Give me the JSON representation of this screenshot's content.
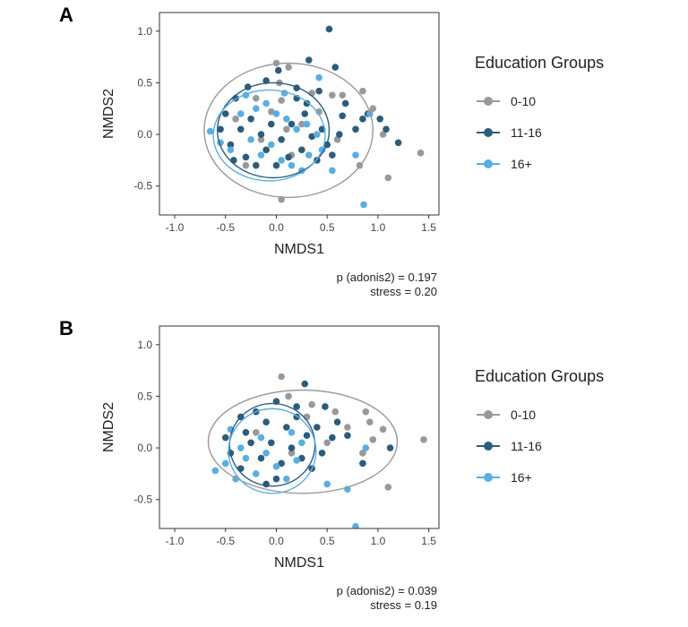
{
  "chart_data": [
    {
      "panel_label": "A",
      "type": "scatter",
      "xlabel": "NMDS1",
      "ylabel": "NMDS2",
      "xlim": [
        -1.15,
        1.6
      ],
      "ylim": [
        -0.78,
        1.18
      ],
      "xticks": [
        "-1.0",
        "-0.5",
        "0.0",
        "0.5",
        "1.0",
        "1.5"
      ],
      "yticks": [
        "-0.5",
        "0.0",
        "0.5",
        "1.0"
      ],
      "grid": false,
      "legend": {
        "title": "Education Groups",
        "placement": "right",
        "entries": [
          {
            "label": "0-10",
            "color": "#999999"
          },
          {
            "label": "11-16",
            "color": "#2c5c7c"
          },
          {
            "label": "16+",
            "color": "#5aaee0"
          }
        ]
      },
      "ellipses": [
        {
          "group": "0-10",
          "cx": 0.12,
          "cy": 0.04,
          "rx": 0.83,
          "ry": 0.65
        },
        {
          "group": "11-16",
          "cx": -0.03,
          "cy": 0.04,
          "rx": 0.55,
          "ry": 0.46
        },
        {
          "group": "16+",
          "cx": -0.07,
          "cy": -0.01,
          "rx": 0.55,
          "ry": 0.44
        }
      ],
      "series": [
        {
          "name": "0-10",
          "color": "#999999",
          "points": [
            [
              0.0,
              0.69
            ],
            [
              0.12,
              0.65
            ],
            [
              0.03,
              0.5
            ],
            [
              -0.2,
              0.35
            ],
            [
              -0.05,
              0.22
            ],
            [
              0.1,
              0.05
            ],
            [
              -0.15,
              -0.05
            ],
            [
              0.35,
              0.4
            ],
            [
              0.55,
              0.38
            ],
            [
              0.65,
              0.38
            ],
            [
              0.85,
              0.42
            ],
            [
              0.95,
              0.25
            ],
            [
              1.05,
              0.0
            ],
            [
              1.1,
              -0.42
            ],
            [
              1.42,
              -0.18
            ],
            [
              0.05,
              -0.63
            ],
            [
              -0.3,
              -0.3
            ],
            [
              0.25,
              0.1
            ],
            [
              -0.4,
              0.15
            ],
            [
              0.05,
              0.33
            ],
            [
              0.42,
              0.22
            ],
            [
              0.82,
              -0.3
            ],
            [
              0.6,
              -0.05
            ],
            [
              0.15,
              -0.2
            ]
          ]
        },
        {
          "name": "11-16",
          "color": "#2c5c7c",
          "points": [
            [
              0.52,
              1.02
            ],
            [
              0.32,
              0.72
            ],
            [
              0.58,
              0.65
            ],
            [
              0.02,
              0.62
            ],
            [
              -0.28,
              0.46
            ],
            [
              -0.1,
              0.52
            ],
            [
              0.2,
              0.45
            ],
            [
              0.42,
              0.42
            ],
            [
              0.65,
              0.18
            ],
            [
              0.68,
              0.3
            ],
            [
              0.78,
              0.05
            ],
            [
              0.9,
              0.2
            ],
            [
              1.02,
              0.15
            ],
            [
              1.08,
              0.05
            ],
            [
              1.2,
              -0.08
            ],
            [
              0.45,
              0.05
            ],
            [
              -0.4,
              0.35
            ],
            [
              -0.5,
              0.2
            ],
            [
              -0.55,
              0.05
            ],
            [
              -0.45,
              -0.1
            ],
            [
              -0.3,
              -0.22
            ],
            [
              -0.2,
              -0.3
            ],
            [
              0.0,
              -0.3
            ],
            [
              0.12,
              -0.22
            ],
            [
              0.25,
              -0.15
            ],
            [
              0.4,
              -0.25
            ],
            [
              0.5,
              -0.1
            ],
            [
              -0.35,
              0.05
            ],
            [
              -0.25,
              0.15
            ],
            [
              -0.15,
              0.0
            ],
            [
              -0.05,
              0.1
            ],
            [
              0.05,
              -0.05
            ],
            [
              0.15,
              0.1
            ],
            [
              0.28,
              0.2
            ],
            [
              0.35,
              -0.02
            ],
            [
              -0.42,
              -0.25
            ],
            [
              0.2,
              0.35
            ],
            [
              -0.1,
              -0.15
            ],
            [
              0.3,
              0.3
            ],
            [
              0.62,
              0.0
            ],
            [
              0.55,
              -0.2
            ],
            [
              0.85,
              0.15
            ]
          ]
        },
        {
          "name": "16+",
          "color": "#5aaee0",
          "points": [
            [
              0.42,
              0.55
            ],
            [
              -0.65,
              0.03
            ],
            [
              -0.55,
              -0.08
            ],
            [
              -0.45,
              -0.15
            ],
            [
              -0.35,
              0.2
            ],
            [
              -0.2,
              0.25
            ],
            [
              -0.1,
              0.3
            ],
            [
              0.0,
              0.2
            ],
            [
              0.1,
              0.15
            ],
            [
              0.2,
              0.05
            ],
            [
              0.3,
              0.1
            ],
            [
              0.4,
              0.0
            ],
            [
              0.45,
              -0.15
            ],
            [
              -0.25,
              -0.05
            ],
            [
              -0.15,
              -0.2
            ],
            [
              -0.05,
              -0.1
            ],
            [
              0.05,
              -0.25
            ],
            [
              0.15,
              -0.3
            ],
            [
              0.25,
              -0.35
            ],
            [
              0.55,
              -0.35
            ],
            [
              0.86,
              -0.68
            ],
            [
              0.92,
              0.2
            ],
            [
              0.78,
              -0.2
            ],
            [
              -0.3,
              0.38
            ],
            [
              0.08,
              0.4
            ],
            [
              0.32,
              -0.2
            ]
          ]
        }
      ],
      "stats": {
        "p_label": "p (adonis2) = 0.197",
        "stress_label": "stress = 0.20"
      }
    },
    {
      "panel_label": "B",
      "type": "scatter",
      "xlabel": "NMDS1",
      "ylabel": "NMDS2",
      "xlim": [
        -1.15,
        1.6
      ],
      "ylim": [
        -0.78,
        1.18
      ],
      "xticks": [
        "-1.0",
        "-0.5",
        "0.0",
        "0.5",
        "1.0",
        "1.5"
      ],
      "yticks": [
        "-0.5",
        "0.0",
        "0.5",
        "1.0"
      ],
      "grid": false,
      "legend": {
        "title": "Education Groups",
        "placement": "right",
        "entries": [
          {
            "label": "0-10",
            "color": "#999999"
          },
          {
            "label": "11-16",
            "color": "#2c5c7c"
          },
          {
            "label": "16+",
            "color": "#5aaee0"
          }
        ]
      },
      "ellipses": [
        {
          "group": "0-10",
          "cx": 0.26,
          "cy": 0.06,
          "rx": 0.93,
          "ry": 0.5
        },
        {
          "group": "11-16",
          "cx": -0.04,
          "cy": 0.03,
          "rx": 0.42,
          "ry": 0.4
        },
        {
          "group": "16+",
          "cx": -0.04,
          "cy": -0.03,
          "rx": 0.43,
          "ry": 0.41
        }
      ],
      "series": [
        {
          "name": "0-10",
          "color": "#999999",
          "points": [
            [
              0.05,
              0.69
            ],
            [
              0.12,
              0.5
            ],
            [
              0.35,
              0.42
            ],
            [
              0.3,
              0.3
            ],
            [
              0.58,
              0.35
            ],
            [
              0.88,
              0.35
            ],
            [
              0.92,
              0.25
            ],
            [
              1.05,
              0.18
            ],
            [
              0.95,
              0.08
            ],
            [
              0.85,
              -0.05
            ],
            [
              1.1,
              -0.38
            ],
            [
              1.45,
              0.08
            ],
            [
              0.7,
              0.2
            ],
            [
              0.5,
              0.05
            ],
            [
              0.15,
              -0.05
            ],
            [
              -0.2,
              0.15
            ]
          ]
        },
        {
          "name": "11-16",
          "color": "#2c5c7c",
          "points": [
            [
              0.28,
              0.62
            ],
            [
              0.0,
              0.45
            ],
            [
              -0.35,
              0.3
            ],
            [
              -0.2,
              0.35
            ],
            [
              -0.1,
              0.25
            ],
            [
              0.1,
              0.2
            ],
            [
              0.2,
              0.3
            ],
            [
              0.3,
              0.12
            ],
            [
              0.4,
              0.2
            ],
            [
              0.48,
              0.4
            ],
            [
              0.55,
              0.1
            ],
            [
              0.7,
              0.12
            ],
            [
              0.85,
              -0.15
            ],
            [
              1.12,
              0.0
            ],
            [
              -0.5,
              0.1
            ],
            [
              -0.45,
              -0.05
            ],
            [
              -0.35,
              -0.2
            ],
            [
              -0.25,
              0.05
            ],
            [
              -0.15,
              -0.1
            ],
            [
              -0.05,
              0.05
            ],
            [
              0.05,
              -0.15
            ],
            [
              0.15,
              0.0
            ],
            [
              0.25,
              -0.1
            ],
            [
              0.35,
              -0.2
            ],
            [
              0.45,
              -0.05
            ],
            [
              0.0,
              -0.3
            ],
            [
              -0.1,
              -0.35
            ],
            [
              -0.3,
              0.15
            ],
            [
              0.2,
              0.4
            ],
            [
              0.6,
              0.25
            ]
          ]
        },
        {
          "name": "16+",
          "color": "#5aaee0",
          "points": [
            [
              -0.6,
              -0.22
            ],
            [
              -0.5,
              -0.15
            ],
            [
              -0.4,
              -0.3
            ],
            [
              -0.3,
              -0.1
            ],
            [
              -0.2,
              -0.25
            ],
            [
              -0.1,
              -0.05
            ],
            [
              0.0,
              -0.18
            ],
            [
              0.1,
              -0.3
            ],
            [
              0.2,
              -0.12
            ],
            [
              0.25,
              0.05
            ],
            [
              -0.15,
              0.1
            ],
            [
              -0.35,
              0.0
            ],
            [
              0.5,
              -0.35
            ],
            [
              0.7,
              -0.4
            ],
            [
              0.78,
              -0.76
            ],
            [
              0.88,
              0.0
            ],
            [
              -0.45,
              0.18
            ],
            [
              0.15,
              0.15
            ]
          ]
        }
      ],
      "stats": {
        "p_label": "p (adonis2) = 0.039",
        "stress_label": "stress = 0.19"
      }
    }
  ]
}
